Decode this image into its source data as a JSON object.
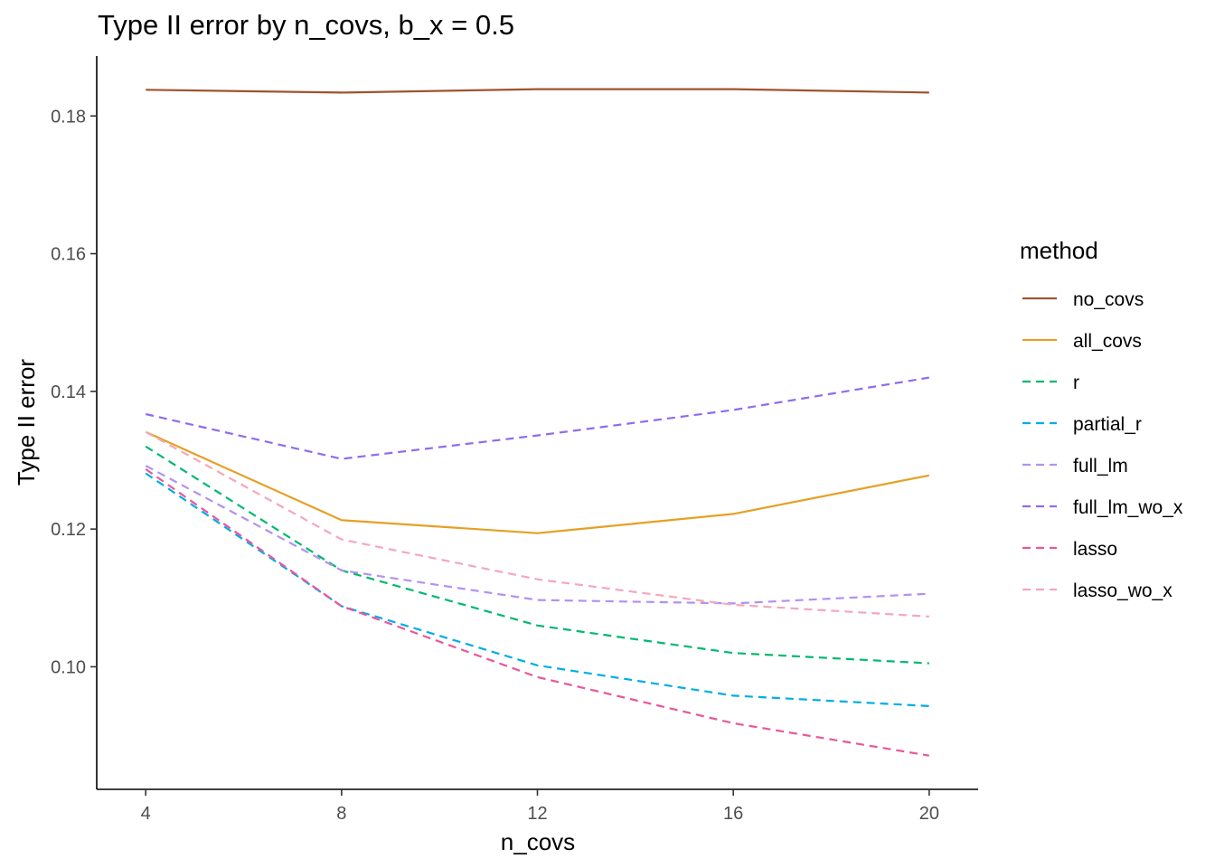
{
  "chart_data": {
    "type": "line",
    "title": "Type II error by n_covs, b_x = 0.5",
    "xlabel": "n_covs",
    "ylabel": "Type II error",
    "x": [
      4,
      8,
      12,
      16,
      20
    ],
    "xlim": [
      3.0,
      21.0
    ],
    "ylim": [
      0.0822,
      0.1887
    ],
    "xticks": [
      4,
      8,
      12,
      16,
      20
    ],
    "yticks": [
      0.1,
      0.12,
      0.14,
      0.16,
      0.18
    ],
    "ytick_labels": [
      "0.10",
      "0.12",
      "0.14",
      "0.16",
      "0.18"
    ],
    "grid": false,
    "legend_title": "method",
    "legend_position": "right",
    "series": [
      {
        "name": "no_covs",
        "values": [
          0.1838,
          0.1834,
          0.1839,
          0.1839,
          0.1834
        ],
        "color": "#A0522D",
        "dashed": false
      },
      {
        "name": "all_covs",
        "values": [
          0.1341,
          0.1213,
          0.1194,
          0.1222,
          0.1278
        ],
        "color": "#E6A024",
        "dashed": false
      },
      {
        "name": "r",
        "values": [
          0.132,
          0.114,
          0.106,
          0.102,
          0.1005
        ],
        "color": "#00B871",
        "dashed": true
      },
      {
        "name": "partial_r",
        "values": [
          0.1281,
          0.1088,
          0.1002,
          0.0958,
          0.0943
        ],
        "color": "#00ADE6",
        "dashed": true
      },
      {
        "name": "full_lm",
        "values": [
          0.1292,
          0.114,
          0.1097,
          0.1092,
          0.1106
        ],
        "color": "#B291F0",
        "dashed": true
      },
      {
        "name": "full_lm_wo_x",
        "values": [
          0.1367,
          0.1302,
          0.1336,
          0.1373,
          0.142
        ],
        "color": "#8F6BEF",
        "dashed": true
      },
      {
        "name": "lasso",
        "values": [
          0.1287,
          0.1088,
          0.0985,
          0.0918,
          0.0871
        ],
        "color": "#E9579C",
        "dashed": true
      },
      {
        "name": "lasso_wo_x",
        "values": [
          0.1341,
          0.1185,
          0.1127,
          0.109,
          0.1073
        ],
        "color": "#F4A7BC",
        "dashed": true
      }
    ]
  }
}
